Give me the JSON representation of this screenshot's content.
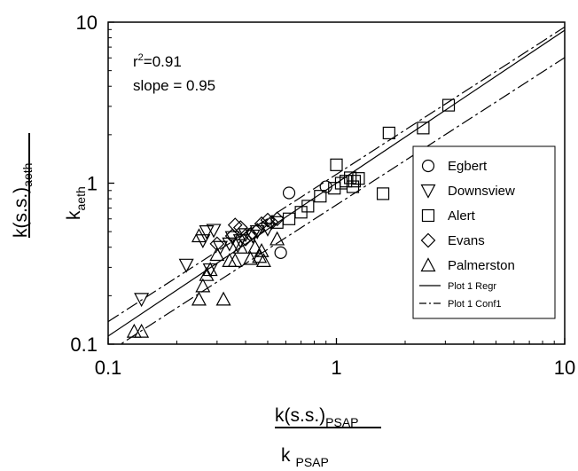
{
  "chart_data": {
    "type": "scatter",
    "x_scale": "log",
    "y_scale": "log",
    "xlim": [
      0.1,
      10
    ],
    "ylim": [
      0.1,
      10
    ],
    "x_ticks": [
      "0.1",
      "1",
      "10"
    ],
    "y_ticks": [
      "0.1",
      "1",
      "10"
    ],
    "xlabel_numerator": "k(s.s.)",
    "xlabel_numerator_sub": "PSAP",
    "xlabel_denominator": "k",
    "xlabel_denominator_sub": "PSAP",
    "ylabel_numerator": "k(s.s.)",
    "ylabel_numerator_sub": "aeth",
    "ylabel_denominator": "k",
    "ylabel_denominator_sub": "aeth",
    "annotation_r2_base": "r",
    "annotation_r2_sup": "2",
    "annotation_r2_value": "=0.91",
    "annotation_slope": "slope = 0.95",
    "legend_position": "right",
    "series": [
      {
        "name": "Egbert",
        "marker": "circle",
        "points": [
          [
            0.62,
            0.87
          ],
          [
            0.9,
            0.95
          ],
          [
            0.57,
            0.37
          ]
        ]
      },
      {
        "name": "Downsview",
        "marker": "triangle-down",
        "points": [
          [
            0.14,
            0.19
          ],
          [
            0.22,
            0.31
          ],
          [
            0.26,
            0.44
          ],
          [
            0.27,
            0.5
          ],
          [
            0.29,
            0.51
          ],
          [
            0.31,
            0.4
          ],
          [
            0.34,
            0.42
          ],
          [
            0.35,
            0.46
          ],
          [
            0.38,
            0.44
          ],
          [
            0.4,
            0.48
          ],
          [
            0.43,
            0.47
          ],
          [
            0.45,
            0.5
          ],
          [
            0.5,
            0.52
          ],
          [
            0.28,
            0.29
          ],
          [
            0.37,
            0.41
          ]
        ]
      },
      {
        "name": "Alert",
        "marker": "square",
        "points": [
          [
            0.62,
            0.6
          ],
          [
            0.7,
            0.66
          ],
          [
            0.75,
            0.72
          ],
          [
            0.85,
            0.83
          ],
          [
            0.98,
            0.93
          ],
          [
            1.0,
            1.3
          ],
          [
            1.05,
            1.0
          ],
          [
            1.1,
            1.03
          ],
          [
            1.15,
            1.08
          ],
          [
            1.18,
            0.95
          ],
          [
            1.2,
            1.03
          ],
          [
            1.25,
            1.07
          ],
          [
            1.6,
            0.86
          ],
          [
            1.7,
            2.05
          ],
          [
            2.4,
            2.2
          ],
          [
            3.1,
            3.05
          ],
          [
            0.55,
            0.57
          ]
        ]
      },
      {
        "name": "Evans",
        "marker": "diamond",
        "points": [
          [
            0.3,
            0.42
          ],
          [
            0.35,
            0.47
          ],
          [
            0.38,
            0.53
          ],
          [
            0.4,
            0.45
          ],
          [
            0.42,
            0.48
          ],
          [
            0.45,
            0.51
          ],
          [
            0.47,
            0.56
          ],
          [
            0.5,
            0.59
          ],
          [
            0.55,
            0.6
          ],
          [
            0.36,
            0.55
          ],
          [
            0.52,
            0.57
          ]
        ]
      },
      {
        "name": "Palmerston",
        "marker": "triangle-up",
        "points": [
          [
            0.13,
            0.12
          ],
          [
            0.14,
            0.12
          ],
          [
            0.25,
            0.19
          ],
          [
            0.26,
            0.23
          ],
          [
            0.27,
            0.27
          ],
          [
            0.28,
            0.29
          ],
          [
            0.32,
            0.19
          ],
          [
            0.34,
            0.33
          ],
          [
            0.36,
            0.33
          ],
          [
            0.38,
            0.4
          ],
          [
            0.42,
            0.34
          ],
          [
            0.46,
            0.35
          ],
          [
            0.47,
            0.38
          ],
          [
            0.48,
            0.33
          ],
          [
            0.55,
            0.45
          ],
          [
            0.25,
            0.47
          ],
          [
            0.3,
            0.36
          ],
          [
            0.44,
            0.4
          ]
        ]
      }
    ],
    "regression": {
      "name": "Plot 1 Regr",
      "slope": 0.95,
      "intercept_log10": 0.0
    },
    "confidence": {
      "name": "Plot 1 Conf1",
      "upper_log10": [
        [
          -1,
          -0.86
        ],
        [
          1,
          0.97
        ]
      ],
      "lower_log10": [
        [
          -1,
          -1.05
        ],
        [
          1,
          0.78
        ]
      ]
    }
  }
}
